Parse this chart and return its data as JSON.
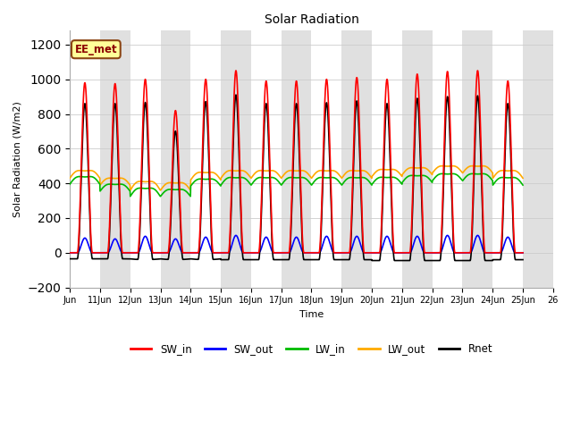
{
  "title": "Solar Radiation",
  "ylabel": "Solar Radiation (W/m2)",
  "xlabel": "Time",
  "ylim": [
    -200,
    1280
  ],
  "yticks": [
    -200,
    0,
    200,
    400,
    600,
    800,
    1000,
    1200
  ],
  "n_days": 15,
  "pts_per_day": 144,
  "label": "EE_met",
  "series_colors": {
    "SW_in": "#ff0000",
    "SW_out": "#0000ff",
    "LW_in": "#00bb00",
    "LW_out": "#ffaa00",
    "Rnet": "#000000"
  },
  "background_color": "#ffffff",
  "band_color": "#e0e0e0",
  "sw_peaks": [
    980,
    975,
    1000,
    820,
    1000,
    1050,
    990,
    990,
    1000,
    1010,
    1000,
    1030,
    1045,
    1050,
    990
  ],
  "sw_out_peaks": [
    85,
    80,
    95,
    80,
    90,
    100,
    90,
    90,
    95,
    95,
    95,
    95,
    100,
    100,
    90
  ],
  "lw_out_base": [
    430,
    390,
    360,
    360,
    420,
    430,
    430,
    430,
    430,
    430,
    440,
    450,
    460,
    460,
    430
  ],
  "lw_out_amp": [
    60,
    55,
    70,
    60,
    60,
    60,
    60,
    60,
    60,
    60,
    55,
    55,
    55,
    55,
    60
  ],
  "lw_in_base": [
    395,
    355,
    325,
    325,
    385,
    390,
    390,
    390,
    390,
    390,
    395,
    405,
    415,
    415,
    390
  ],
  "lw_in_amp": [
    60,
    55,
    65,
    55,
    55,
    60,
    60,
    60,
    60,
    60,
    55,
    55,
    55,
    55,
    60
  ],
  "rnet_night": [
    -50,
    -55,
    -70,
    -70,
    -60,
    -60,
    -60,
    -60,
    -60,
    -60,
    -60,
    -55,
    -55,
    -55,
    -60
  ],
  "tick_labels": [
    "Jun",
    "11Jun",
    "12Jun",
    "13Jun",
    "14Jun",
    "15Jun",
    "16Jun",
    "17Jun",
    "18Jun",
    "19Jun",
    "20Jun",
    "21Jun",
    "22Jun",
    "23Jun",
    "24Jun",
    "25Jun",
    "26"
  ],
  "figsize": [
    6.4,
    4.8
  ],
  "dpi": 100
}
